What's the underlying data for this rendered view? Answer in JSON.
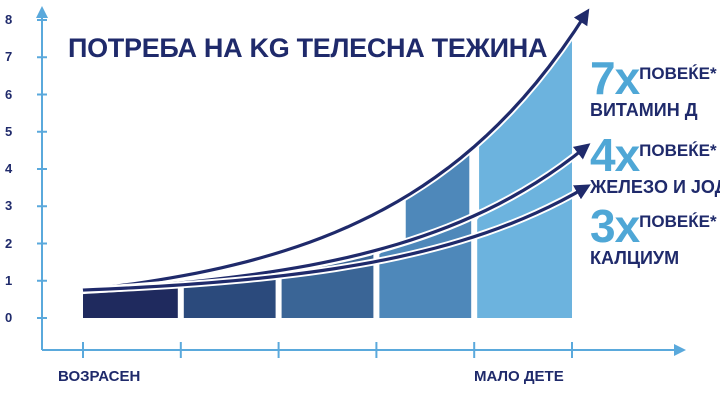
{
  "chart_data": {
    "type": "area",
    "title": "ПОТРЕБА НА KG ТЕЛЕСНА ТЕЖИНА",
    "xlabel": "",
    "ylabel": "",
    "categories": [
      "ВОЗРАСЕН",
      "",
      "",
      "",
      "МАЛО ДЕТЕ"
    ],
    "y_ticks": [
      "0",
      "1",
      "2",
      "3",
      "4",
      "5",
      "6",
      "7",
      "8"
    ],
    "ylim": [
      0,
      8
    ],
    "grid": false,
    "segment_colors": [
      "#1f2a5e",
      "#2b4a7c",
      "#3a6596",
      "#4e88ba",
      "#6cb3de"
    ],
    "series": [
      {
        "name": "ВИТАМИН Д",
        "multiplier": 7,
        "start": 1.0,
        "end": 7.6
      },
      {
        "name": "ЖЕЛЕЗО И ЈОД",
        "multiplier": 4,
        "start": 1.0,
        "end": 4.3
      },
      {
        "name": "КАЛЦИУМ",
        "multiplier": 3,
        "start": 1.0,
        "end": 3.3
      }
    ],
    "annotations": [
      {
        "big": "7x",
        "more": "ПОВЕЌЕ*",
        "nutrient": "ВИТАМИН Д"
      },
      {
        "big": "4x",
        "more": "ПОВЕЌЕ*",
        "nutrient": "ЖЕЛЕЗО И ЈОД"
      },
      {
        "big": "3x",
        "more": "ПОВЕЌЕ*",
        "nutrient": "КАЛЦИУМ"
      }
    ],
    "colors": {
      "axis": "#5aa9dc",
      "text": "#1f2a6b",
      "accent": "#4fa7d6",
      "arrow": "#1f2a6b"
    }
  }
}
